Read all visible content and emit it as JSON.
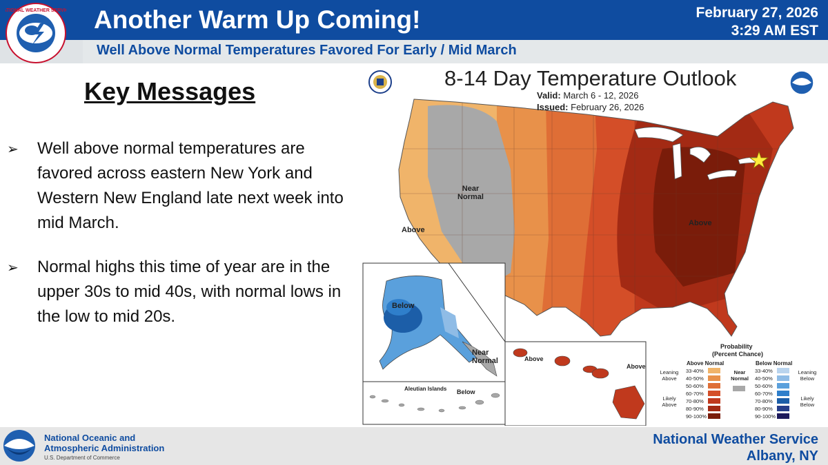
{
  "header": {
    "title": "Another Warm Up Coming!",
    "subtitle": "Well Above Normal Temperatures Favored For Early / Mid March",
    "date": "February 27, 2026",
    "time": "3:29 AM EST",
    "logo_text": "NATIONAL WEATHER SERVICE",
    "brand_color": "#0f4ca0"
  },
  "key_messages": {
    "heading": "Key Messages",
    "bullets": [
      "Well above normal temperatures are favored across eastern New York and Western New England late next week into mid March.",
      "Normal highs this time of year are in the upper 30s to mid 40s, with normal lows in the low to mid 20s."
    ]
  },
  "outlook_map": {
    "title": "8-14 Day Temperature Outlook",
    "valid_label": "Valid:",
    "valid_value": "March 6 - 12, 2026",
    "issued_label": "Issued:",
    "issued_value": "February 26, 2026",
    "labels": {
      "near_normal_conus": "Near Normal",
      "above_west": "Above",
      "above_east": "Above",
      "below_alaska": "Below",
      "near_normal_alaska": "Near Normal",
      "aleutian": "Aleutian Islands",
      "below_aleutian": "Below",
      "above_hawaii_west": "Above",
      "above_hawaii_east": "Above"
    }
  },
  "legend": {
    "title": "Probability",
    "subtitle": "(Percent Chance)",
    "above_heading": "Above Normal",
    "below_heading": "Below Normal",
    "near_normal": "Near Normal",
    "leaning_above": "Leaning Above",
    "likely_above": "Likely Above",
    "leaning_below": "Leaning Below",
    "likely_below": "Likely Below",
    "above_bins": [
      {
        "range": "33-40%",
        "color": "#f0b46a"
      },
      {
        "range": "40-50%",
        "color": "#e8914a"
      },
      {
        "range": "50-60%",
        "color": "#df6e36"
      },
      {
        "range": "60-70%",
        "color": "#d44e28"
      },
      {
        "range": "70-80%",
        "color": "#c0391d"
      },
      {
        "range": "80-90%",
        "color": "#a32a14"
      },
      {
        "range": "90-100%",
        "color": "#7a1c0a"
      }
    ],
    "below_bins": [
      {
        "range": "33-40%",
        "color": "#b9d4ee"
      },
      {
        "range": "40-50%",
        "color": "#8fbce6"
      },
      {
        "range": "50-60%",
        "color": "#5aa0dc"
      },
      {
        "range": "60-70%",
        "color": "#2f7fcb"
      },
      {
        "range": "70-80%",
        "color": "#1c5ea8"
      },
      {
        "range": "80-90%",
        "color": "#263e8a"
      },
      {
        "range": "90-100%",
        "color": "#1d1a5c"
      }
    ],
    "near_color": "#a8a8a8"
  },
  "footer": {
    "noaa_line1": "National Oceanic and",
    "noaa_line2": "Atmospheric Administration",
    "noaa_dept": "U.S. Department of Commerce",
    "nws_line1": "National Weather Service",
    "nws_line2": "Albany, NY"
  }
}
